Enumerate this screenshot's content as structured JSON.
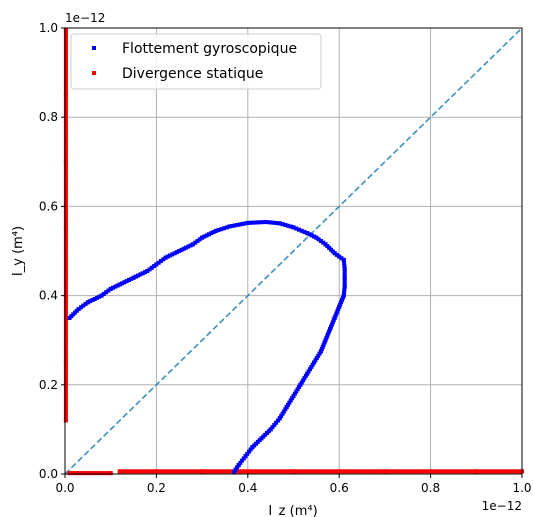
{
  "chart_data": {
    "type": "scatter",
    "title": "",
    "xlabel": "I_z (m⁴)",
    "ylabel": "I_y (m⁴)",
    "x_scale_label": "1e−12",
    "y_scale_label": "1e−12",
    "xlim": [
      0,
      1.0
    ],
    "ylim": [
      0,
      1.0
    ],
    "x_ticks": [
      "0.0",
      "0.2",
      "0.4",
      "0.6",
      "0.8",
      "1.0"
    ],
    "y_ticks": [
      "0.0",
      "0.2",
      "0.4",
      "0.6",
      "0.8",
      "1.0"
    ],
    "grid": true,
    "legend_position": "upper-left",
    "series": [
      {
        "name": "Flottement gyroscopique",
        "color": "#0000ff",
        "marker": "square",
        "points": [
          [
            0.01,
            0.35
          ],
          [
            0.03,
            0.37
          ],
          [
            0.05,
            0.385
          ],
          [
            0.08,
            0.4
          ],
          [
            0.1,
            0.415
          ],
          [
            0.12,
            0.425
          ],
          [
            0.15,
            0.44
          ],
          [
            0.18,
            0.455
          ],
          [
            0.2,
            0.47
          ],
          [
            0.22,
            0.485
          ],
          [
            0.25,
            0.5
          ],
          [
            0.28,
            0.515
          ],
          [
            0.3,
            0.53
          ],
          [
            0.33,
            0.545
          ],
          [
            0.36,
            0.555
          ],
          [
            0.4,
            0.563
          ],
          [
            0.44,
            0.565
          ],
          [
            0.47,
            0.562
          ],
          [
            0.5,
            0.553
          ],
          [
            0.53,
            0.54
          ],
          [
            0.55,
            0.53
          ],
          [
            0.57,
            0.515
          ],
          [
            0.59,
            0.495
          ],
          [
            0.61,
            0.48
          ],
          [
            0.612,
            0.46
          ],
          [
            0.612,
            0.44
          ],
          [
            0.612,
            0.42
          ],
          [
            0.61,
            0.4
          ],
          [
            0.6,
            0.375
          ],
          [
            0.59,
            0.35
          ],
          [
            0.58,
            0.325
          ],
          [
            0.57,
            0.3
          ],
          [
            0.56,
            0.275
          ],
          [
            0.545,
            0.25
          ],
          [
            0.53,
            0.225
          ],
          [
            0.515,
            0.2
          ],
          [
            0.5,
            0.175
          ],
          [
            0.485,
            0.15
          ],
          [
            0.47,
            0.125
          ],
          [
            0.45,
            0.1
          ],
          [
            0.43,
            0.08
          ],
          [
            0.41,
            0.06
          ],
          [
            0.395,
            0.04
          ],
          [
            0.38,
            0.02
          ],
          [
            0.37,
            0.005
          ]
        ]
      },
      {
        "name": "Divergence statique",
        "color": "#ff0000",
        "marker": "square",
        "points": [
          [
            0.002,
            0.12
          ],
          [
            0.002,
            0.25
          ],
          [
            0.002,
            0.4
          ],
          [
            0.002,
            0.55
          ],
          [
            0.002,
            0.7
          ],
          [
            0.002,
            0.85
          ],
          [
            0.002,
            0.995
          ],
          [
            0.01,
            0.002
          ],
          [
            0.05,
            0.002
          ],
          [
            0.1,
            0.002
          ],
          [
            0.12,
            0.006
          ],
          [
            0.2,
            0.006
          ],
          [
            0.3,
            0.006
          ],
          [
            0.4,
            0.006
          ],
          [
            0.5,
            0.006
          ],
          [
            0.6,
            0.006
          ],
          [
            0.7,
            0.006
          ],
          [
            0.8,
            0.006
          ],
          [
            0.9,
            0.006
          ],
          [
            1.0,
            0.006
          ]
        ]
      },
      {
        "name": "",
        "type": "line",
        "style": "dashed",
        "color": "#3d8fc0",
        "points": [
          [
            0,
            0
          ],
          [
            1.0,
            1.0
          ]
        ]
      }
    ]
  }
}
